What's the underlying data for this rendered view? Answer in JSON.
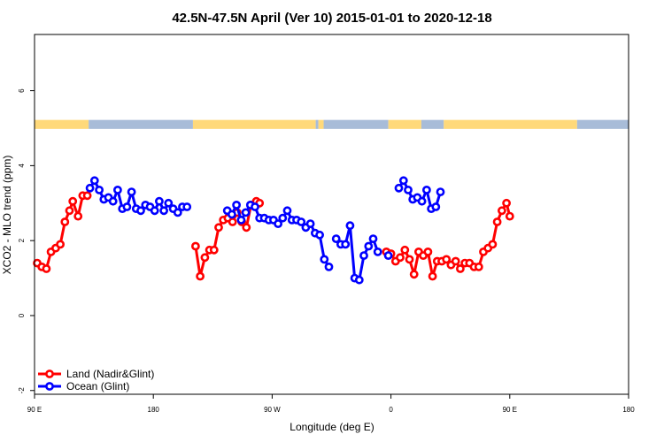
{
  "chart_data": {
    "type": "line",
    "title": "42.5N-47.5N April (Ver 10)   2015-01-01 to 2020-12-18",
    "xlabel": "Longitude (deg E)",
    "ylabel": "XCO2 - MLO trend (ppm)",
    "xlim": [
      90,
      450
    ],
    "ylim": [
      -2.1,
      7.5
    ],
    "x_ticks": [
      90,
      180,
      270,
      360,
      450,
      540
    ],
    "x_tick_labels": [
      "90 E",
      "180",
      "90 W",
      "0",
      "90 E",
      "180"
    ],
    "y_ticks": [
      -2,
      0,
      2,
      4,
      6
    ],
    "y_tick_labels": [
      "-2",
      "0",
      "2",
      "4",
      "6"
    ],
    "surface_strip": {
      "y_range": [
        4.98,
        5.22
      ],
      "land_color": "#FFD97A",
      "ocean_color": "#A8BCD8",
      "segments": [
        {
          "type": "land",
          "start": 90,
          "end": 131
        },
        {
          "type": "ocean",
          "start": 131,
          "end": 210
        },
        {
          "type": "land",
          "start": 210,
          "end": 303
        },
        {
          "type": "ocean",
          "start": 303,
          "end": 305
        },
        {
          "type": "land",
          "start": 305,
          "end": 309
        },
        {
          "type": "ocean",
          "start": 309,
          "end": 358
        },
        {
          "type": "land",
          "start": 358,
          "end": 383
        },
        {
          "type": "ocean",
          "start": 383,
          "end": 400
        },
        {
          "type": "land",
          "start": 400,
          "end": 501
        },
        {
          "type": "ocean",
          "start": 501,
          "end": 540
        }
      ]
    },
    "series": [
      {
        "name": "Land (Nadir&Glint)",
        "color": "#FF0000",
        "segments": [
          [
            [
              92,
              1.4
            ],
            [
              95.5,
              1.3
            ],
            [
              99,
              1.25
            ],
            [
              102.5,
              1.7
            ],
            [
              106,
              1.8
            ],
            [
              109.5,
              1.9
            ],
            [
              113,
              2.5
            ],
            [
              116.5,
              2.8
            ],
            [
              119,
              3.05
            ],
            [
              123,
              2.65
            ],
            [
              126.5,
              3.2
            ],
            [
              130,
              3.2
            ]
          ],
          [
            [
              212,
              1.85
            ],
            [
              215.5,
              1.05
            ],
            [
              219,
              1.55
            ],
            [
              222.5,
              1.75
            ],
            [
              226,
              1.75
            ],
            [
              229.5,
              2.35
            ],
            [
              233,
              2.55
            ],
            [
              236.5,
              2.6
            ],
            [
              240,
              2.5
            ],
            [
              243.5,
              2.75
            ],
            [
              247,
              2.5
            ],
            [
              250.5,
              2.35
            ],
            [
              254,
              2.95
            ],
            [
              258,
              3.05
            ],
            [
              260.5,
              3.0
            ]
          ],
          [
            [
              356.5,
              1.7
            ],
            [
              360,
              1.65
            ],
            [
              363.5,
              1.45
            ],
            [
              367,
              1.55
            ],
            [
              370.5,
              1.75
            ],
            [
              374,
              1.5
            ],
            [
              377.5,
              1.1
            ],
            [
              381,
              1.7
            ],
            [
              384.5,
              1.6
            ],
            [
              388,
              1.7
            ],
            [
              391.5,
              1.05
            ],
            [
              395,
              1.45
            ],
            [
              398.5,
              1.45
            ],
            [
              402,
              1.5
            ],
            [
              405.5,
              1.35
            ],
            [
              409,
              1.45
            ],
            [
              412.5,
              1.25
            ],
            [
              416,
              1.4
            ],
            [
              419.5,
              1.4
            ],
            [
              423,
              1.3
            ],
            [
              426.5,
              1.3
            ],
            [
              430,
              1.7
            ],
            [
              433.5,
              1.8
            ],
            [
              437,
              1.9
            ],
            [
              440.5,
              2.5
            ],
            [
              444,
              2.8
            ],
            [
              447.5,
              3.0
            ],
            [
              450,
              2.65
            ]
          ]
        ]
      },
      {
        "name": "Ocean (Glint)",
        "color": "#0000FF",
        "segments": [
          [
            [
              132,
              3.4
            ],
            [
              135.5,
              3.6
            ],
            [
              139,
              3.35
            ],
            [
              142.5,
              3.1
            ],
            [
              146,
              3.15
            ],
            [
              149.5,
              3.05
            ],
            [
              153,
              3.35
            ],
            [
              156.5,
              2.85
            ],
            [
              160,
              2.9
            ],
            [
              163.5,
              3.3
            ],
            [
              167,
              2.85
            ],
            [
              170.5,
              2.8
            ],
            [
              174,
              2.95
            ],
            [
              177.5,
              2.9
            ],
            [
              181,
              2.8
            ],
            [
              184.5,
              3.05
            ],
            [
              188,
              2.8
            ],
            [
              191.5,
              3.0
            ],
            [
              195,
              2.85
            ],
            [
              198.5,
              2.75
            ],
            [
              202,
              2.9
            ],
            [
              205.5,
              2.9
            ]
          ],
          [
            [
              236,
              2.8
            ],
            [
              239.5,
              2.7
            ],
            [
              243,
              2.95
            ],
            [
              246.5,
              2.55
            ],
            [
              250,
              2.75
            ],
            [
              253.5,
              2.95
            ],
            [
              257,
              2.9
            ],
            [
              260.5,
              2.6
            ],
            [
              264,
              2.6
            ],
            [
              267.5,
              2.55
            ],
            [
              271,
              2.55
            ],
            [
              274.5,
              2.45
            ],
            [
              278,
              2.6
            ],
            [
              281.5,
              2.8
            ],
            [
              285,
              2.55
            ],
            [
              288.5,
              2.55
            ],
            [
              292,
              2.5
            ],
            [
              295.5,
              2.35
            ],
            [
              299,
              2.45
            ],
            [
              302.5,
              2.2
            ],
            [
              306,
              2.15
            ],
            [
              309.5,
              1.5
            ],
            [
              313,
              1.3
            ]
          ],
          [
            [
              318.5,
              2.05
            ],
            [
              322,
              1.9
            ],
            [
              325.5,
              1.9
            ],
            [
              329,
              2.4
            ],
            [
              332.5,
              1.0
            ],
            [
              336,
              0.95
            ],
            [
              339.5,
              1.6
            ],
            [
              343,
              1.85
            ],
            [
              346.5,
              2.05
            ],
            [
              350,
              1.7
            ]
          ],
          [
            [
              358,
              1.6
            ]
          ],
          [
            [
              366,
              3.4
            ],
            [
              369.5,
              3.6
            ],
            [
              373,
              3.35
            ],
            [
              376.5,
              3.1
            ],
            [
              380,
              3.15
            ],
            [
              383.5,
              3.05
            ],
            [
              387,
              3.35
            ],
            [
              390.5,
              2.85
            ],
            [
              394,
              2.9
            ],
            [
              397.5,
              3.3
            ]
          ]
        ]
      }
    ],
    "legend": {
      "position": "bottom-left",
      "entries": [
        "Land (Nadir&Glint)",
        "Ocean (Glint)"
      ]
    }
  }
}
